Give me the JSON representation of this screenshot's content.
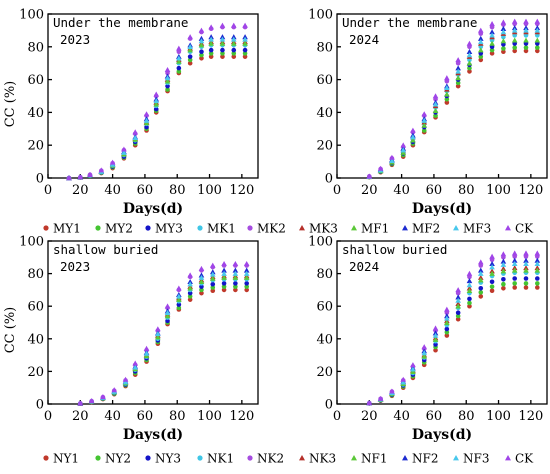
{
  "chart_data": [
    {
      "type": "scatter",
      "title": "Under the membrane",
      "subtitle": "2023",
      "xlabel": "Days(d)",
      "ylabel": "CC (%)",
      "xlim": [
        0,
        130
      ],
      "ylim": [
        0,
        100
      ],
      "xticks": [
        "0",
        "20",
        "40",
        "60",
        "80",
        "100",
        "120"
      ],
      "yticks": [
        "0",
        "20",
        "40",
        "60",
        "80",
        "100"
      ],
      "legend_group": 0,
      "x": [
        13,
        20,
        26,
        33,
        40,
        47,
        54,
        61,
        67,
        74,
        81,
        88,
        95,
        101,
        108,
        115,
        122
      ],
      "series": [
        {
          "name": "MY1",
          "values": [
            0,
            0.3,
            1.3,
            3,
            6,
            12,
            20,
            29,
            40,
            53,
            64,
            70,
            73,
            74,
            74,
            74,
            74
          ]
        },
        {
          "name": "MY2",
          "values": [
            0,
            0.3,
            1.4,
            3.2,
            6.5,
            12.5,
            21,
            30,
            41,
            54,
            65,
            72,
            75,
            76,
            76,
            76,
            76
          ]
        },
        {
          "name": "MY3",
          "values": [
            0,
            0.4,
            1.5,
            3.4,
            7,
            13,
            22,
            31,
            42,
            56,
            67,
            74,
            77,
            78,
            78,
            78,
            78
          ]
        },
        {
          "name": "MK1",
          "values": [
            0,
            0.4,
            1.6,
            3.6,
            7.5,
            14,
            23,
            33,
            44,
            58,
            70,
            77,
            80,
            81,
            81,
            81,
            81
          ]
        },
        {
          "name": "MK2",
          "values": [
            0,
            0.5,
            2,
            4.5,
            9,
            17,
            27,
            38,
            50,
            64,
            77,
            85,
            89,
            91,
            92,
            92,
            92
          ]
        },
        {
          "name": "MK3",
          "values": [
            0,
            0.4,
            1.7,
            3.8,
            8,
            15,
            24,
            34,
            46,
            60,
            72,
            79,
            82,
            83,
            83,
            83,
            83
          ]
        },
        {
          "name": "MF1",
          "values": [
            0,
            0.4,
            1.6,
            3.7,
            7.7,
            14.5,
            23.5,
            33.5,
            45,
            59,
            71,
            78,
            81,
            82,
            82,
            82,
            82
          ]
        },
        {
          "name": "MF2",
          "values": [
            0,
            0.5,
            1.8,
            4,
            8.5,
            16,
            25,
            36,
            48,
            62,
            74,
            81,
            85,
            86,
            86,
            86,
            86
          ]
        },
        {
          "name": "MF3",
          "values": [
            0,
            0.4,
            1.7,
            3.9,
            8.2,
            15.5,
            24.5,
            35,
            47,
            61,
            73,
            80,
            83.5,
            84.5,
            84.5,
            84.5,
            84.5
          ]
        },
        {
          "name": "CK",
          "values": [
            0,
            0.5,
            2,
            4.8,
            9.5,
            17.5,
            28,
            39,
            51,
            66,
            79,
            86,
            90,
            92,
            93,
            93,
            93
          ]
        }
      ]
    },
    {
      "type": "scatter",
      "title": "Under the membrane",
      "subtitle": "2024",
      "xlabel": "Days(d)",
      "ylabel": "",
      "xlim": [
        0,
        130
      ],
      "ylim": [
        0,
        100
      ],
      "xticks": [
        "0",
        "20",
        "40",
        "60",
        "80",
        "100",
        "120"
      ],
      "yticks": [
        "0",
        "20",
        "40",
        "60",
        "80",
        "100"
      ],
      "legend_group": 0,
      "x": [
        20,
        27,
        34,
        41,
        47,
        54,
        61,
        68,
        75,
        82,
        89,
        96,
        103,
        110,
        117,
        124
      ],
      "series": [
        {
          "name": "MY1",
          "values": [
            0.5,
            3.5,
            8,
            13,
            20,
            28,
            37,
            46,
            56,
            65,
            72,
            76,
            77,
            77.5,
            77.5,
            77.5
          ]
        },
        {
          "name": "MY2",
          "values": [
            0.6,
            3.8,
            8.5,
            14,
            21,
            29,
            38,
            48,
            58,
            67,
            74,
            78,
            79,
            79.5,
            79.5,
            79.5
          ]
        },
        {
          "name": "MY3",
          "values": [
            0.7,
            4,
            9,
            15,
            22,
            31,
            40,
            50,
            60,
            69,
            76,
            80,
            81.5,
            82,
            82,
            82
          ]
        },
        {
          "name": "MK1",
          "values": [
            0.8,
            4.5,
            10,
            16,
            24,
            33,
            43,
            53,
            63,
            72,
            80,
            84,
            86,
            87,
            87,
            87
          ]
        },
        {
          "name": "MK2",
          "values": [
            1,
            5.5,
            12,
            19,
            28,
            38,
            48,
            59,
            70,
            80,
            88,
            92,
            93.5,
            94,
            94,
            94
          ]
        },
        {
          "name": "MK3",
          "values": [
            0.8,
            4.6,
            10.5,
            17,
            25,
            34,
            44,
            54,
            64,
            74,
            82,
            86,
            88,
            89,
            89,
            89
          ]
        },
        {
          "name": "MF1",
          "values": [
            0.7,
            4.3,
            9.5,
            15.5,
            23,
            32,
            41,
            51,
            61,
            70,
            78,
            82,
            83.5,
            84,
            84,
            84
          ]
        },
        {
          "name": "MF2",
          "values": [
            0.9,
            5,
            11,
            18,
            26,
            36,
            46,
            56,
            67,
            77,
            85,
            89,
            91,
            91.5,
            91.5,
            91.5
          ]
        },
        {
          "name": "MF3",
          "values": [
            0.8,
            4.7,
            10.5,
            17,
            25,
            35,
            45,
            55,
            65,
            75,
            83,
            87,
            89,
            90,
            90,
            90
          ]
        },
        {
          "name": "CK",
          "values": [
            1,
            5.8,
            12.5,
            20,
            29,
            39,
            50,
            61,
            72,
            82,
            90,
            94,
            95,
            95.5,
            95.5,
            95.5
          ]
        }
      ]
    },
    {
      "type": "scatter",
      "title": "shallow buried",
      "subtitle": "2023",
      "xlabel": "Days(d)",
      "ylabel": "CC (%)",
      "xlim": [
        0,
        130
      ],
      "ylim": [
        0,
        100
      ],
      "xticks": [
        "0",
        "20",
        "40",
        "60",
        "80",
        "100",
        "120"
      ],
      "yticks": [
        "0",
        "20",
        "40",
        "60",
        "80",
        "100"
      ],
      "legend_group": 1,
      "x": [
        20,
        27,
        34,
        41,
        48,
        54,
        61,
        68,
        74,
        81,
        88,
        95,
        102,
        109,
        116,
        123
      ],
      "series": [
        {
          "name": "NY1",
          "values": [
            0.2,
            1.2,
            3,
            6,
            11,
            18,
            26,
            37,
            49,
            58,
            64,
            68,
            69.5,
            70,
            70,
            70
          ]
        },
        {
          "name": "NY2",
          "values": [
            0.2,
            1.3,
            3.2,
            6.3,
            11.5,
            19,
            27,
            38,
            50,
            59,
            66,
            70,
            71.5,
            72,
            72,
            72
          ]
        },
        {
          "name": "NY3",
          "values": [
            0.3,
            1.4,
            3.4,
            6.7,
            12,
            20,
            28,
            39,
            51,
            61,
            68,
            72,
            73.5,
            74,
            74,
            74
          ]
        },
        {
          "name": "NK1",
          "values": [
            0.3,
            1.5,
            3.6,
            7,
            12.5,
            21,
            29,
            40,
            53,
            63,
            70,
            74,
            76,
            76.5,
            76.5,
            76.5
          ]
        },
        {
          "name": "NK2",
          "values": [
            0.4,
            1.8,
            4.2,
            8.2,
            14.5,
            24,
            33,
            45,
            59,
            70,
            78,
            82,
            84,
            85,
            85,
            85
          ]
        },
        {
          "name": "NK3",
          "values": [
            0.3,
            1.6,
            3.8,
            7.4,
            13,
            22,
            30,
            42,
            55,
            65,
            72,
            76,
            78,
            78.5,
            78.5,
            78.5
          ]
        },
        {
          "name": "NF1",
          "values": [
            0.3,
            1.5,
            3.7,
            7.2,
            12.8,
            21.5,
            29.5,
            41,
            54,
            64,
            71,
            75,
            77,
            77.5,
            77.5,
            77.5
          ]
        },
        {
          "name": "NF2",
          "values": [
            0.35,
            1.7,
            4,
            7.8,
            13.8,
            23,
            31.5,
            43.5,
            57,
            67,
            75,
            79,
            81,
            82,
            82,
            82
          ]
        },
        {
          "name": "NF3",
          "values": [
            0.35,
            1.65,
            3.9,
            7.6,
            13.4,
            22.5,
            31,
            43,
            56,
            66,
            73.5,
            77.5,
            79.5,
            80,
            80,
            80
          ]
        },
        {
          "name": "CK",
          "values": [
            0.4,
            1.9,
            4.4,
            8.6,
            15,
            25,
            34,
            46,
            60,
            71,
            79,
            83,
            85,
            86,
            86,
            86
          ]
        }
      ]
    },
    {
      "type": "scatter",
      "title": "shallow buried",
      "subtitle": "2024",
      "xlabel": "Days(d)",
      "ylabel": "",
      "xlim": [
        0,
        130
      ],
      "ylim": [
        0,
        100
      ],
      "xticks": [
        "0",
        "20",
        "40",
        "60",
        "80",
        "100",
        "120"
      ],
      "yticks": [
        "0",
        "20",
        "40",
        "60",
        "80",
        "100"
      ],
      "legend_group": 1,
      "x": [
        20,
        27,
        34,
        41,
        47,
        54,
        61,
        68,
        75,
        82,
        89,
        96,
        103,
        110,
        117,
        124
      ],
      "series": [
        {
          "name": "NY1",
          "values": [
            0.3,
            2,
            5,
            10,
            16,
            24,
            33,
            42,
            52,
            60,
            66,
            69.5,
            71,
            71.5,
            71.5,
            71.5
          ]
        },
        {
          "name": "NY2",
          "values": [
            0.4,
            2.2,
            5.4,
            10.7,
            17,
            25.5,
            35,
            44,
            54,
            62,
            68.5,
            72,
            73.5,
            74,
            74,
            74
          ]
        },
        {
          "name": "NY3",
          "values": [
            0.4,
            2.4,
            5.8,
            11.4,
            18,
            27,
            36.5,
            46,
            56,
            64.5,
            71,
            75,
            76.5,
            77,
            77,
            77
          ]
        },
        {
          "name": "NK1",
          "values": [
            0.5,
            2.6,
            6.2,
            12,
            19,
            28.5,
            38.5,
            48.5,
            59,
            68,
            74.5,
            78.5,
            80,
            80.5,
            80.5,
            80.5
          ]
        },
        {
          "name": "NK2",
          "values": [
            0.6,
            3.2,
            7.6,
            14.5,
            23,
            34,
            45,
            56,
            68,
            78,
            85,
            88.5,
            90,
            90.5,
            90.5,
            90.5
          ]
        },
        {
          "name": "NK3",
          "values": [
            0.5,
            2.8,
            6.6,
            12.8,
            20.5,
            30,
            40.5,
            51,
            61.5,
            71,
            77.5,
            81.5,
            83,
            83.5,
            83.5,
            83.5
          ]
        },
        {
          "name": "NF1",
          "values": [
            0.5,
            2.7,
            6.4,
            12.4,
            19.8,
            29.2,
            39.5,
            49.8,
            60,
            69.5,
            76,
            80,
            81.5,
            82,
            82,
            82
          ]
        },
        {
          "name": "NF2",
          "values": [
            0.6,
            3,
            7.2,
            13.8,
            22,
            32.5,
            43.5,
            54,
            65.5,
            75.5,
            82,
            86,
            87.5,
            88,
            88,
            88
          ]
        },
        {
          "name": "NF3",
          "values": [
            0.55,
            2.9,
            6.9,
            13.3,
            21.3,
            31.3,
            42,
            52.5,
            63.5,
            73,
            80,
            84,
            85.5,
            86,
            86,
            86
          ]
        },
        {
          "name": "CK",
          "values": [
            0.6,
            3.3,
            7.8,
            15,
            24,
            35,
            46.5,
            58,
            70,
            80,
            87,
            90.5,
            92,
            92.5,
            92.5,
            92.5
          ]
        }
      ]
    }
  ],
  "legends": [
    [
      "MY1",
      "MY2",
      "MY3",
      "MK1",
      "MK2",
      "MK3",
      "MF1",
      "MF2",
      "MF3",
      "CK"
    ],
    [
      "NY1",
      "NY2",
      "NY3",
      "NK1",
      "NK2",
      "NK3",
      "NF1",
      "NF2",
      "NF3",
      "CK"
    ]
  ],
  "series_styles": [
    {
      "color": "#c0392b",
      "marker": "circle"
    },
    {
      "color": "#44c431",
      "marker": "circle"
    },
    {
      "color": "#1414c8",
      "marker": "circle"
    },
    {
      "color": "#3fc6e6",
      "marker": "circle"
    },
    {
      "color": "#a64ce0",
      "marker": "circle"
    },
    {
      "color": "#b5302a",
      "marker": "triangle"
    },
    {
      "color": "#5bc838",
      "marker": "triangle"
    },
    {
      "color": "#1d2bd0",
      "marker": "triangle"
    },
    {
      "color": "#49c8ec",
      "marker": "triangle"
    },
    {
      "color": "#a045e8",
      "marker": "triangle"
    }
  ]
}
